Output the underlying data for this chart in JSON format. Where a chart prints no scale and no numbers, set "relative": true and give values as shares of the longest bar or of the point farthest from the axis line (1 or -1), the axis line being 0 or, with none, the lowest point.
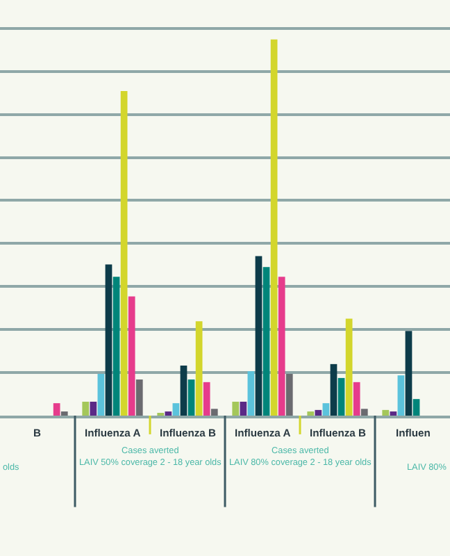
{
  "chart_data": {
    "type": "bar",
    "relative": true,
    "grid": "y",
    "categories": [
      "B",
      "Influenza A",
      "Influenza B",
      "Influenza A",
      "Influenza B",
      "Influen"
    ],
    "series": [
      {
        "color": "#a4c75a",
        "values": [
          null,
          0.037,
          0.007,
          0.037,
          0.011,
          0.015
        ]
      },
      {
        "color": "#5b2a86",
        "values": [
          null,
          0.037,
          0.011,
          0.037,
          0.015,
          0.011
        ]
      },
      {
        "color": "#5bc3dc",
        "values": [
          null,
          0.111,
          0.033,
          0.118,
          0.033,
          0.107
        ]
      },
      {
        "color": "#0d3c4a",
        "values": [
          null,
          0.402,
          0.133,
          0.424,
          0.137,
          0.225
        ]
      },
      {
        "color": "#00857a",
        "values": [
          null,
          0.369,
          0.096,
          0.395,
          0.1,
          0.044
        ]
      },
      {
        "color": "#d3d62c",
        "values": [
          null,
          0.863,
          0.251,
          1,
          0.258,
          null
        ]
      },
      {
        "color": "#e63c8c",
        "values": [
          0.033,
          0.317,
          0.089,
          0.369,
          0.089,
          null
        ]
      },
      {
        "color": "#6b6b70",
        "values": [
          0.011,
          0.096,
          0.018,
          0.111,
          0.018,
          null
        ]
      }
    ],
    "annotations": [
      "olds",
      "Cases averted\nLAIV 50% coverage 2 - 18 year olds",
      "Cases averted\nLAIV 80% coverage 2 - 18 year olds",
      "LAIV 80%"
    ]
  }
}
